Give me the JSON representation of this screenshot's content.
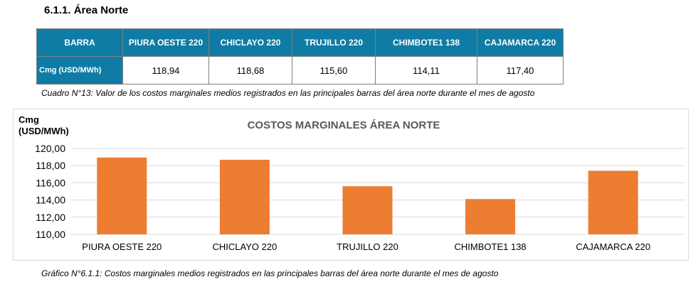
{
  "section_title": "6.1.1. Área Norte",
  "table": {
    "header_label": "BARRA",
    "row_label": "Cmg (USD/MWh)",
    "columns": [
      "PIURA OESTE 220",
      "CHICLAYO 220",
      "TRUJILLO 220",
      "CHIMBOTE1 138",
      "CAJAMARCA 220"
    ],
    "values": [
      "118,94",
      "118,68",
      "115,60",
      "114,11",
      "117,40"
    ]
  },
  "table_caption": "Cuadro N°13: Valor de los costos marginales medios registrados en las principales barras del área norte durante el mes de agosto",
  "chart_caption": "Gráfico N°6.1.1: Costos marginales medios registrados en las principales barras del área norte durante el mes de agosto",
  "colors": {
    "header": "#0f7ca5",
    "bar": "#ed7d31",
    "grid": "#d9d9d9"
  },
  "chart_data": {
    "type": "bar",
    "title": "COSTOS MARGINALES ÁREA NORTE",
    "ylabel_lines": [
      "Cmg",
      "(USD/MWh)"
    ],
    "xlabel": "",
    "categories": [
      "PIURA OESTE 220",
      "CHICLAYO 220",
      "TRUJILLO 220",
      "CHIMBOTE1 138",
      "CAJAMARCA 220"
    ],
    "values": [
      118.94,
      118.68,
      115.6,
      114.11,
      117.4
    ],
    "ylim": [
      110,
      120
    ],
    "yticks": [
      110,
      112,
      114,
      116,
      118,
      120
    ],
    "ytick_labels": [
      "110,00",
      "112,00",
      "114,00",
      "116,00",
      "118,00",
      "120,00"
    ],
    "grid": true,
    "legend": "none"
  }
}
